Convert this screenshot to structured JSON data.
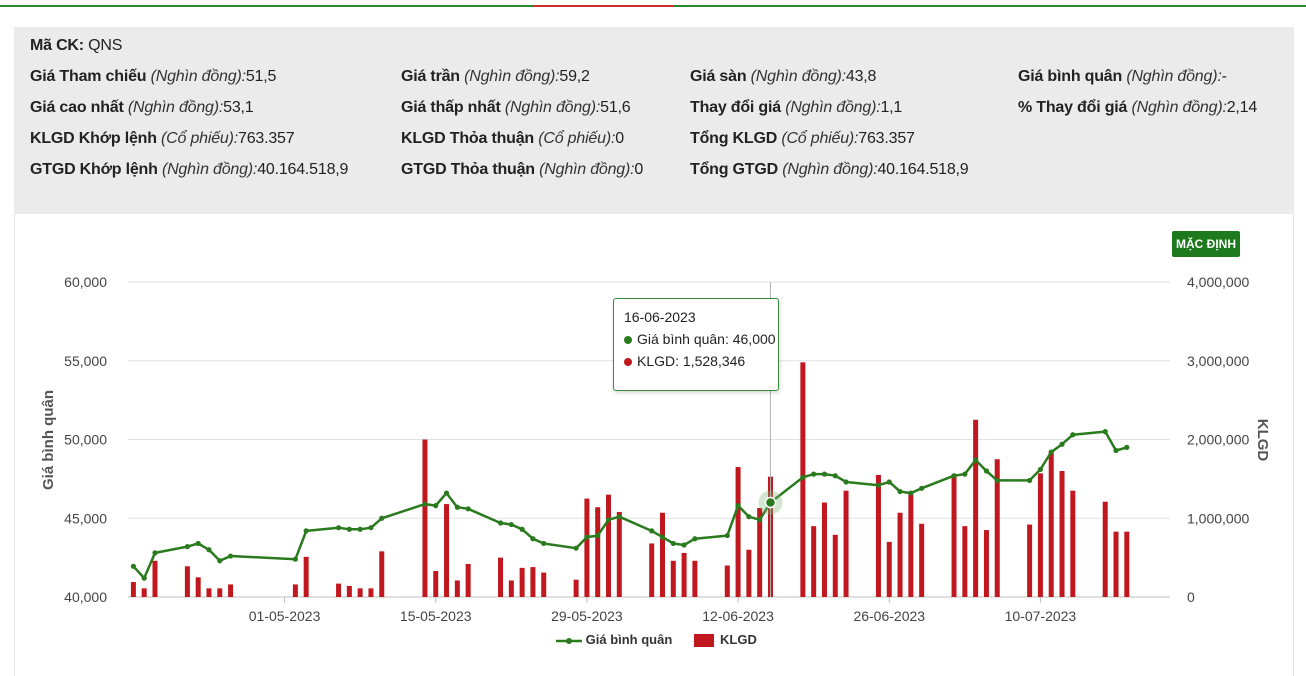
{
  "info": {
    "ma_ck": {
      "label": "Mã CK:",
      "value": "QNS"
    },
    "rows": [
      [
        {
          "label": "Giá Tham chiếu",
          "unit": "(Nghìn đồng):",
          "value": "51,5"
        },
        {
          "label": "Giá trần",
          "unit": "(Nghìn đồng):",
          "value": "59,2"
        },
        {
          "label": "Giá sàn",
          "unit": "(Nghìn đồng):",
          "value": "43,8"
        },
        {
          "label": "Giá bình quân",
          "unit": "(Nghìn đồng):",
          "value": "-"
        }
      ],
      [
        {
          "label": "Giá cao nhất",
          "unit": "(Nghìn đồng):",
          "value": "53,1"
        },
        {
          "label": "Giá thấp nhất",
          "unit": "(Nghìn đồng):",
          "value": "51,6"
        },
        {
          "label": "Thay đổi giá",
          "unit": "(Nghìn đồng):",
          "value": "1,1"
        },
        {
          "label": "% Thay đổi giá",
          "unit": "(Nghìn đồng):",
          "value": "2,14"
        }
      ],
      [
        {
          "label": "KLGD Khớp lệnh",
          "unit": "(Cổ phiếu):",
          "value": "763.357"
        },
        {
          "label": "KLGD Thỏa thuận",
          "unit": "(Cổ phiếu):",
          "value": "0"
        },
        {
          "label": "Tổng KLGD",
          "unit": "(Cổ phiếu):",
          "value": "763.357"
        }
      ],
      [
        {
          "label": "GTGD Khớp lệnh",
          "unit": "(Nghìn đồng):",
          "value": "40.164.518,9"
        },
        {
          "label": "GTGD Thỏa thuận",
          "unit": "(Nghìn đồng):",
          "value": "0"
        },
        {
          "label": "Tổng GTGD",
          "unit": "(Nghìn đồng):",
          "value": "40.164.518,9"
        }
      ]
    ]
  },
  "reset_button": "MẶC ĐỊNH",
  "tooltip": {
    "date": "16-06-2023",
    "line1": "Giá bình quân: 46,000",
    "line2": "KLGD: 1,528,346"
  },
  "legend": {
    "line": "Giá bình quân",
    "bar": "KLGD"
  },
  "colors": {
    "line": "#2a7a1e",
    "bar": "#c0181e",
    "button": "#1e7a1e",
    "panel": "#ebebeb"
  },
  "chart_data": {
    "type": "bar+line",
    "left_axis": {
      "label": "Giá bình quân",
      "min": 40000,
      "max": 60000,
      "ticks": [
        "40,000",
        "45,000",
        "50,000",
        "55,000",
        "60,000"
      ]
    },
    "right_axis": {
      "label": "KLGD",
      "min": 0,
      "max": 4000000,
      "ticks": [
        "0",
        "1,000,000",
        "2,000,000",
        "3,000,000",
        "4,000,000"
      ]
    },
    "x_ticks": [
      {
        "label": "01-05-2023",
        "day": 14
      },
      {
        "label": "15-05-2023",
        "day": 28
      },
      {
        "label": "29-05-2023",
        "day": 42
      },
      {
        "label": "12-06-2023",
        "day": 56
      },
      {
        "label": "26-06-2023",
        "day": 70
      },
      {
        "label": "10-07-2023",
        "day": 84
      }
    ],
    "x_day_range": [
      -0.5,
      96
    ],
    "series": [
      {
        "name": "Giá bình quân",
        "type": "line",
        "points": [
          [
            0,
            41950
          ],
          [
            1,
            41200
          ],
          [
            2,
            42800
          ],
          [
            5,
            43200
          ],
          [
            6,
            43400
          ],
          [
            7,
            43000
          ],
          [
            8,
            42300
          ],
          [
            9,
            42600
          ],
          [
            15,
            42400
          ],
          [
            16,
            44200
          ],
          [
            19,
            44400
          ],
          [
            20,
            44300
          ],
          [
            21,
            44300
          ],
          [
            22,
            44400
          ],
          [
            23,
            45000
          ],
          [
            27,
            45900
          ],
          [
            28,
            45800
          ],
          [
            29,
            46600
          ],
          [
            30,
            45700
          ],
          [
            31,
            45600
          ],
          [
            34,
            44700
          ],
          [
            35,
            44600
          ],
          [
            36,
            44300
          ],
          [
            37,
            43700
          ],
          [
            38,
            43400
          ],
          [
            41,
            43100
          ],
          [
            42,
            43800
          ],
          [
            43,
            43900
          ],
          [
            44,
            44900
          ],
          [
            45,
            45100
          ],
          [
            48,
            44200
          ],
          [
            49,
            43800
          ],
          [
            50,
            43400
          ],
          [
            51,
            43300
          ],
          [
            52,
            43700
          ],
          [
            55,
            43900
          ],
          [
            56,
            45800
          ],
          [
            57,
            45100
          ],
          [
            58,
            44900
          ],
          [
            59,
            46000
          ],
          [
            62,
            47600
          ],
          [
            63,
            47800
          ],
          [
            64,
            47800
          ],
          [
            65,
            47700
          ],
          [
            66,
            47300
          ],
          [
            69,
            47100
          ],
          [
            70,
            47300
          ],
          [
            71,
            46700
          ],
          [
            72,
            46600
          ],
          [
            73,
            46900
          ],
          [
            76,
            47700
          ],
          [
            77,
            47800
          ],
          [
            78,
            48700
          ],
          [
            79,
            48000
          ],
          [
            80,
            47400
          ],
          [
            83,
            47400
          ],
          [
            84,
            48100
          ],
          [
            85,
            49200
          ],
          [
            86,
            49700
          ],
          [
            87,
            50300
          ],
          [
            90,
            50500
          ],
          [
            91,
            49300
          ],
          [
            92,
            49500
          ]
        ]
      },
      {
        "name": "KLGD",
        "type": "bar",
        "points": [
          [
            0,
            190000
          ],
          [
            1,
            110000
          ],
          [
            2,
            460000
          ],
          [
            5,
            390000
          ],
          [
            6,
            250000
          ],
          [
            7,
            110000
          ],
          [
            8,
            110000
          ],
          [
            9,
            160000
          ],
          [
            15,
            160000
          ],
          [
            16,
            510000
          ],
          [
            19,
            170000
          ],
          [
            20,
            140000
          ],
          [
            21,
            110000
          ],
          [
            22,
            110000
          ],
          [
            23,
            580000
          ],
          [
            27,
            2000000
          ],
          [
            28,
            330000
          ],
          [
            29,
            1180000
          ],
          [
            30,
            210000
          ],
          [
            31,
            420000
          ],
          [
            34,
            500000
          ],
          [
            35,
            210000
          ],
          [
            36,
            370000
          ],
          [
            37,
            380000
          ],
          [
            38,
            310000
          ],
          [
            41,
            220000
          ],
          [
            42,
            1250000
          ],
          [
            43,
            1140000
          ],
          [
            44,
            1300000
          ],
          [
            45,
            1080000
          ],
          [
            48,
            680000
          ],
          [
            49,
            1070000
          ],
          [
            50,
            460000
          ],
          [
            51,
            560000
          ],
          [
            52,
            460000
          ],
          [
            55,
            400000
          ],
          [
            56,
            1650000
          ],
          [
            57,
            600000
          ],
          [
            58,
            1130000
          ],
          [
            59,
            1528346
          ],
          [
            62,
            2980000
          ],
          [
            63,
            900000
          ],
          [
            64,
            1200000
          ],
          [
            65,
            790000
          ],
          [
            66,
            1350000
          ],
          [
            69,
            1550000
          ],
          [
            70,
            700000
          ],
          [
            71,
            1070000
          ],
          [
            72,
            1330000
          ],
          [
            73,
            930000
          ],
          [
            76,
            1560000
          ],
          [
            77,
            900000
          ],
          [
            78,
            2250000
          ],
          [
            79,
            850000
          ],
          [
            80,
            1750000
          ],
          [
            83,
            920000
          ],
          [
            84,
            1570000
          ],
          [
            85,
            1850000
          ],
          [
            86,
            1600000
          ],
          [
            87,
            1350000
          ],
          [
            90,
            1210000
          ],
          [
            91,
            830000
          ],
          [
            92,
            830000
          ]
        ]
      }
    ],
    "highlight_day": 59,
    "grid": "horizontal"
  }
}
